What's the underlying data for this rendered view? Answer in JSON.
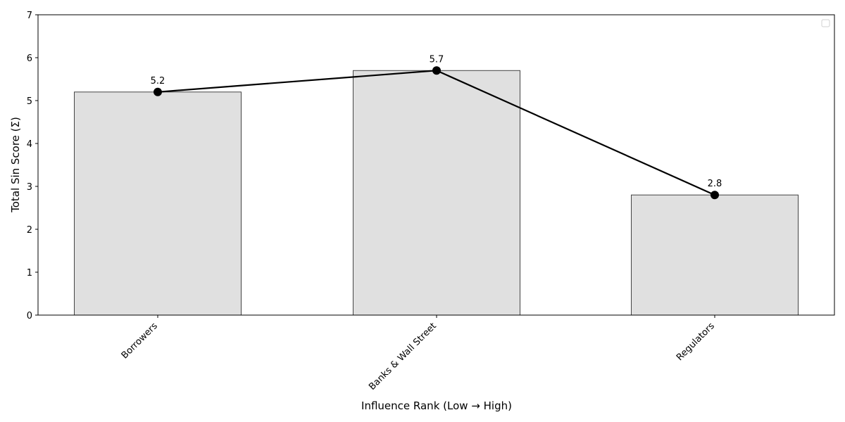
{
  "chart_data": {
    "type": "bar",
    "title": "",
    "xlabel": "Influence Rank (Low → High)",
    "ylabel": "Total Sin Score (Σ)",
    "categories": [
      "Borrowers",
      "Banks & Wall Street",
      "Regulators"
    ],
    "values": [
      5.2,
      5.7,
      2.8
    ],
    "data_labels": [
      "5.2",
      "5.7",
      "2.8"
    ],
    "overlay_line": {
      "type": "line",
      "values": [
        5.2,
        5.7,
        2.8
      ],
      "marker": "circle",
      "color": "#000000"
    },
    "ylim": [
      0,
      7
    ],
    "yticks": [
      0,
      1,
      2,
      3,
      4,
      5,
      6,
      7
    ],
    "grid": false,
    "legend": {
      "position": "upper right",
      "entries": []
    },
    "colors": {
      "bar_fill": "#e0e0e0",
      "bar_edge": "#444444",
      "line": "#000000"
    }
  }
}
